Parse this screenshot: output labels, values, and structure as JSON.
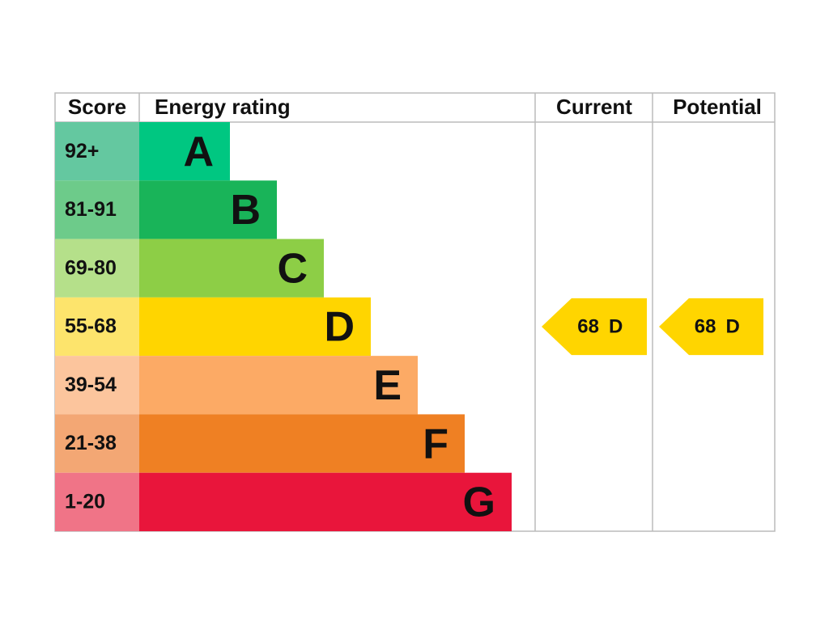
{
  "header": {
    "score": "Score",
    "energy_rating": "Energy rating",
    "current": "Current",
    "potential": "Potential"
  },
  "bands": [
    {
      "score": "92+",
      "rating": "A",
      "color": "#00c781",
      "score_color": "#64c8a0"
    },
    {
      "score": "81-91",
      "rating": "B",
      "color": "#19b459",
      "score_color": "#6dcb8a"
    },
    {
      "score": "69-80",
      "rating": "C",
      "color": "#8dce46",
      "score_color": "#b5e08a"
    },
    {
      "score": "55-68",
      "rating": "D",
      "color": "#ffd500",
      "score_color": "#fde46c"
    },
    {
      "score": "39-54",
      "rating": "E",
      "color": "#fcaa65",
      "score_color": "#fcc59d"
    },
    {
      "score": "21-38",
      "rating": "F",
      "color": "#ef8023",
      "score_color": "#f3a774"
    },
    {
      "score": "1-20",
      "rating": "G",
      "color": "#e9153b",
      "score_color": "#f07487"
    }
  ],
  "current": {
    "score": 68,
    "rating": "D"
  },
  "potential": {
    "score": 68,
    "rating": "D"
  }
}
